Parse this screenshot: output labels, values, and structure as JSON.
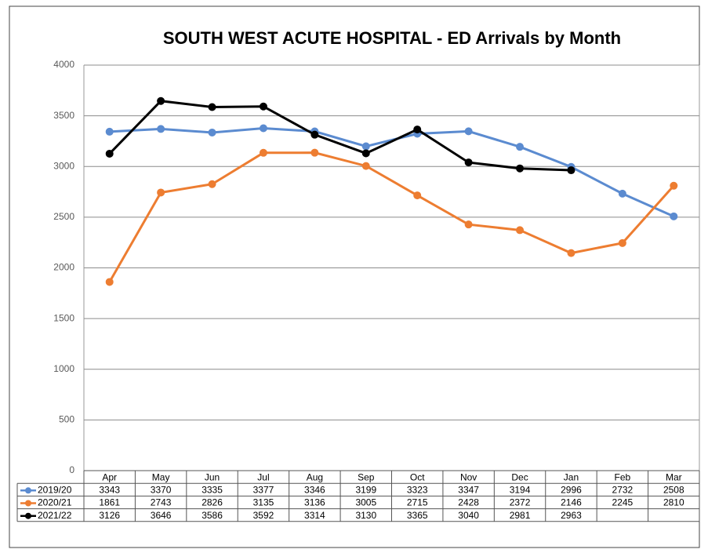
{
  "chart_data": {
    "type": "line",
    "title": "SOUTH WEST ACUTE HOSPITAL - ED Arrivals by Month",
    "categories": [
      "Apr",
      "May",
      "Jun",
      "Jul",
      "Aug",
      "Sep",
      "Oct",
      "Nov",
      "Dec",
      "Jan",
      "Feb",
      "Mar"
    ],
    "series": [
      {
        "name": "2019/20",
        "color": "#5b8bd0",
        "values": [
          3343,
          3370,
          3335,
          3377,
          3346,
          3199,
          3323,
          3347,
          3194,
          2996,
          2732,
          2508
        ]
      },
      {
        "name": "2020/21",
        "color": "#ed7d31",
        "values": [
          1861,
          2743,
          2826,
          3135,
          3136,
          3005,
          2715,
          2428,
          2372,
          2146,
          2245,
          2810
        ]
      },
      {
        "name": "2021/22",
        "color": "#000000",
        "values": [
          3126,
          3646,
          3586,
          3592,
          3314,
          3130,
          3365,
          3040,
          2981,
          2963,
          null,
          null
        ]
      }
    ],
    "ylim": [
      0,
      4000
    ],
    "yticks": [
      0,
      500,
      1000,
      1500,
      2000,
      2500,
      3000,
      3500,
      4000
    ],
    "grid": true
  }
}
